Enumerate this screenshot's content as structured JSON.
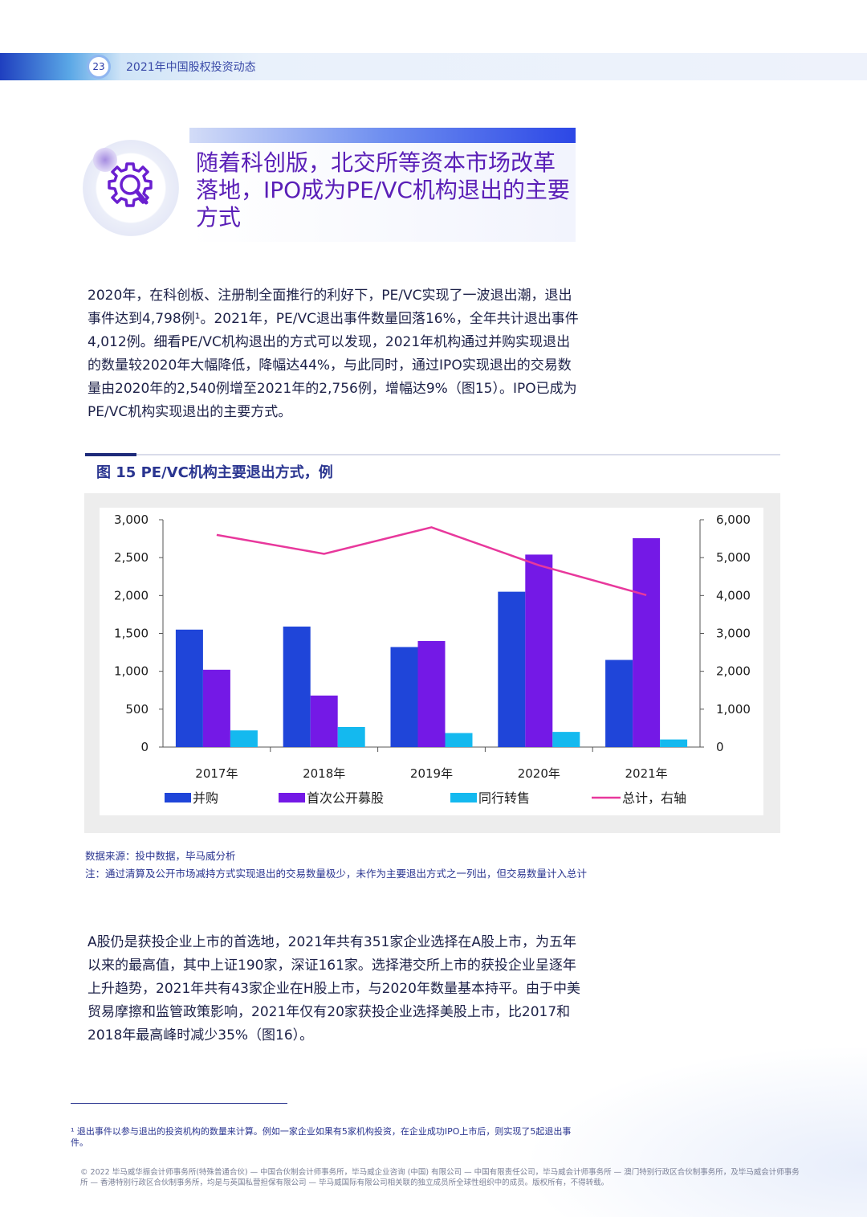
{
  "header": {
    "page_number": "23",
    "title": "2021年中国股权投资动态"
  },
  "section": {
    "title": "随着科创版，北交所等资本市场改革落地，IPO成为PE/VC机构退出的主要方式"
  },
  "paragraph1": "2020年，在科创板、注册制全面推行的利好下，PE/VC实现了一波退出潮，退出事件达到4,798例¹。2021年，PE/VC退出事件数量回落16%，全年共计退出事件4,012例。细看PE/VC机构退出的方式可以发现，2021年机构通过并购实现退出的数量较2020年大幅降低，降幅达44%，与此同时，通过IPO实现退出的交易数量由2020年的2,540例增至2021年的2,756例，增幅达9%（图15）。IPO已成为PE/VC机构实现退出的主要方式。",
  "figure": {
    "title": "图 15  PE/VC机构主要退出方式，例"
  },
  "chart_data": {
    "type": "bar",
    "categories": [
      "2017年",
      "2018年",
      "2019年",
      "2020年",
      "2021年"
    ],
    "series": [
      {
        "name": "并购",
        "values": [
          1550,
          1590,
          1320,
          2050,
          1150
        ],
        "color": "#1f45d9",
        "axis": "left"
      },
      {
        "name": "首次公开募股",
        "values": [
          1020,
          680,
          1400,
          2540,
          2756
        ],
        "color": "#7419e6",
        "axis": "left"
      },
      {
        "name": "同行转售",
        "values": [
          220,
          265,
          185,
          200,
          100
        ],
        "color": "#14b9ef",
        "axis": "left"
      },
      {
        "name": "总计，右轴",
        "values": [
          5600,
          5100,
          5800,
          4798,
          4012
        ],
        "color": "#e8389c",
        "axis": "right",
        "type": "line"
      }
    ],
    "y_left": {
      "ticks": [
        "0",
        "500",
        "1,000",
        "1,500",
        "2,000",
        "2,500",
        "3,000"
      ],
      "range": [
        0,
        3000
      ]
    },
    "y_right": {
      "ticks": [
        "0",
        "1,000",
        "2,000",
        "3,000",
        "4,000",
        "5,000",
        "6,000"
      ],
      "range": [
        0,
        6000
      ]
    },
    "legend_position": "bottom"
  },
  "notes": {
    "source": "数据来源：投中数据，毕马威分析",
    "note": "注：通过清算及公开市场减持方式实现退出的交易数量极少，未作为主要退出方式之一列出，但交易数量计入总计"
  },
  "paragraph2": "A股仍是获投企业上市的首选地，2021年共有351家企业选择在A股上市，为五年以来的最高值，其中上证190家，深证161家。选择港交所上市的获投企业呈逐年上升趋势，2021年共有43家企业在H股上市，与2020年数量基本持平。由于中美贸易摩擦和监管政策影响，2021年仅有20家获投企业选择美股上市，比2017和2018年最高峰时减少35%（图16）。",
  "footnote": "¹ 退出事件以参与退出的投资机构的数量来计算。例如一家企业如果有5家机构投资，在企业成功IPO上市后，则实现了5起退出事件。",
  "copyright": "© 2022 毕马威华振会计师事务所(特殊普通合伙) — 中国合伙制会计师事务所，毕马威企业咨询 (中国) 有限公司 — 中国有限责任公司，毕马威会计师事务所 — 澳门特别行政区合伙制事务所，及毕马威会计师事务所 — 香港特别行政区合伙制事务所，均是与英国私营担保有限公司 — 毕马威国际有限公司相关联的独立成员所全球性组织中的成员。版权所有，不得转载。",
  "colors": {
    "brand_purple": "#5a1fb7",
    "brand_blue": "#2a3590"
  }
}
